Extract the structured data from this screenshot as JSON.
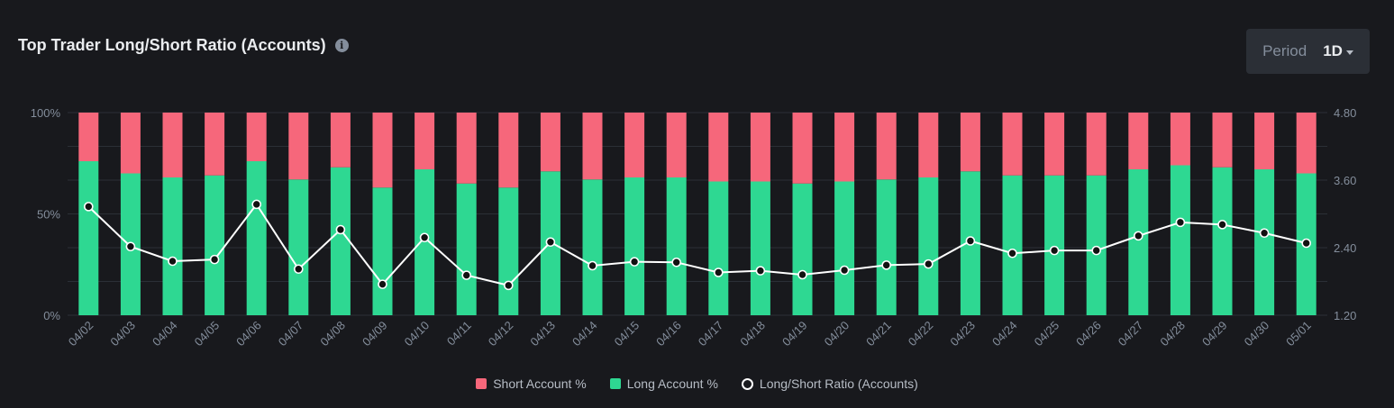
{
  "header": {
    "title": "Top Trader Long/Short Ratio (Accounts)",
    "info_icon": "info-circle-icon",
    "period_label": "Period",
    "period_value": "1D"
  },
  "colors": {
    "short": "#f6677b",
    "long": "#2ed892",
    "ratio_line": "#ffffff",
    "background": "#18191d",
    "grid": "#2b2f36",
    "axis_text": "#848e9c"
  },
  "legend": {
    "short": "Short Account %",
    "long": "Long Account %",
    "ratio": "Long/Short Ratio (Accounts)"
  },
  "chart_data": {
    "type": "bar",
    "stacked": true,
    "categories": [
      "04/02",
      "04/03",
      "04/04",
      "04/05",
      "04/06",
      "04/07",
      "04/08",
      "04/09",
      "04/10",
      "04/11",
      "04/12",
      "04/13",
      "04/14",
      "04/15",
      "04/16",
      "04/17",
      "04/18",
      "04/19",
      "04/20",
      "04/21",
      "04/22",
      "04/23",
      "04/24",
      "04/25",
      "04/26",
      "04/27",
      "04/28",
      "04/29",
      "04/30",
      "05/01"
    ],
    "series": [
      {
        "name": "Long Account %",
        "axis": "left",
        "values": [
          76,
          70,
          68,
          69,
          76,
          67,
          73,
          63,
          72,
          65,
          63,
          71,
          67,
          68,
          68,
          66,
          66,
          65,
          66,
          67,
          68,
          71,
          69,
          69,
          69,
          72,
          74,
          73,
          72,
          70
        ]
      },
      {
        "name": "Short Account %",
        "axis": "left",
        "values": [
          24,
          30,
          32,
          31,
          24,
          33,
          27,
          37,
          28,
          35,
          37,
          29,
          33,
          32,
          32,
          34,
          34,
          35,
          34,
          33,
          32,
          29,
          31,
          31,
          31,
          28,
          26,
          27,
          28,
          30
        ]
      },
      {
        "name": "Long/Short Ratio (Accounts)",
        "type": "line",
        "axis": "right",
        "values": [
          3.13,
          2.42,
          2.16,
          2.19,
          3.17,
          2.02,
          2.72,
          1.75,
          2.58,
          1.91,
          1.73,
          2.5,
          2.08,
          2.15,
          2.14,
          1.96,
          1.99,
          1.92,
          2.0,
          2.09,
          2.11,
          2.52,
          2.3,
          2.35,
          2.35,
          2.61,
          2.85,
          2.81,
          2.66,
          2.48
        ]
      }
    ],
    "y_left": {
      "ticks": [
        "0%",
        "50%",
        "100%"
      ],
      "range": [
        0,
        100
      ]
    },
    "y_right": {
      "ticks": [
        "1.20",
        "2.40",
        "3.60",
        "4.80"
      ],
      "range": [
        1.2,
        4.8
      ]
    },
    "grid": true,
    "legend_position": "bottom-center"
  }
}
